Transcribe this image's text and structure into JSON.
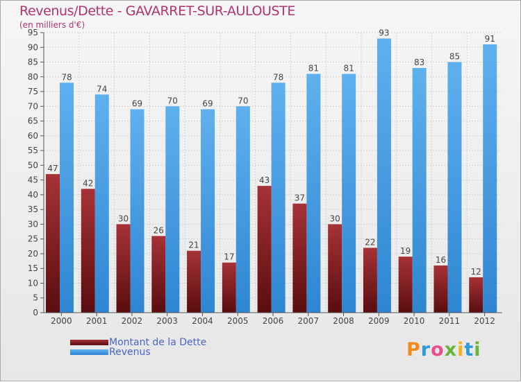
{
  "title": "Revenus/Dette - GAVARRET-SUR-AULOUSTE",
  "subtitle": "(en milliers d'€)",
  "legend": {
    "debt_label": "Montant de la Dette",
    "revenue_label": "Revenus"
  },
  "brand": {
    "letters": [
      "P",
      "r",
      "o",
      "x",
      "i",
      "t",
      "i"
    ],
    "letter_colors": [
      "#f28a1f",
      "#2b9ad9",
      "#e94f8a",
      "#67b43a",
      "#f2b320",
      "#2b9ad9",
      "#67b43a"
    ]
  },
  "colors": {
    "debt_top": "#a63236",
    "debt_bottom": "#5a0d0f",
    "revenue_top": "#5fb0ee",
    "revenue_bottom": "#2e86d2"
  },
  "chart_data": {
    "type": "bar",
    "categories": [
      "2000",
      "2001",
      "2002",
      "2003",
      "2004",
      "2005",
      "2006",
      "2007",
      "2008",
      "2009",
      "2010",
      "2011",
      "2012"
    ],
    "series": [
      {
        "name": "Montant de la Dette",
        "values": [
          47,
          42,
          30,
          26,
          21,
          17,
          43,
          37,
          30,
          22,
          19,
          16,
          12
        ]
      },
      {
        "name": "Revenus",
        "values": [
          78,
          74,
          69,
          70,
          69,
          70,
          78,
          81,
          81,
          93,
          83,
          85,
          91
        ]
      }
    ],
    "ylim": [
      0,
      95
    ],
    "ytick_step": 5,
    "grid": true,
    "legend_position": "bottom-left"
  }
}
